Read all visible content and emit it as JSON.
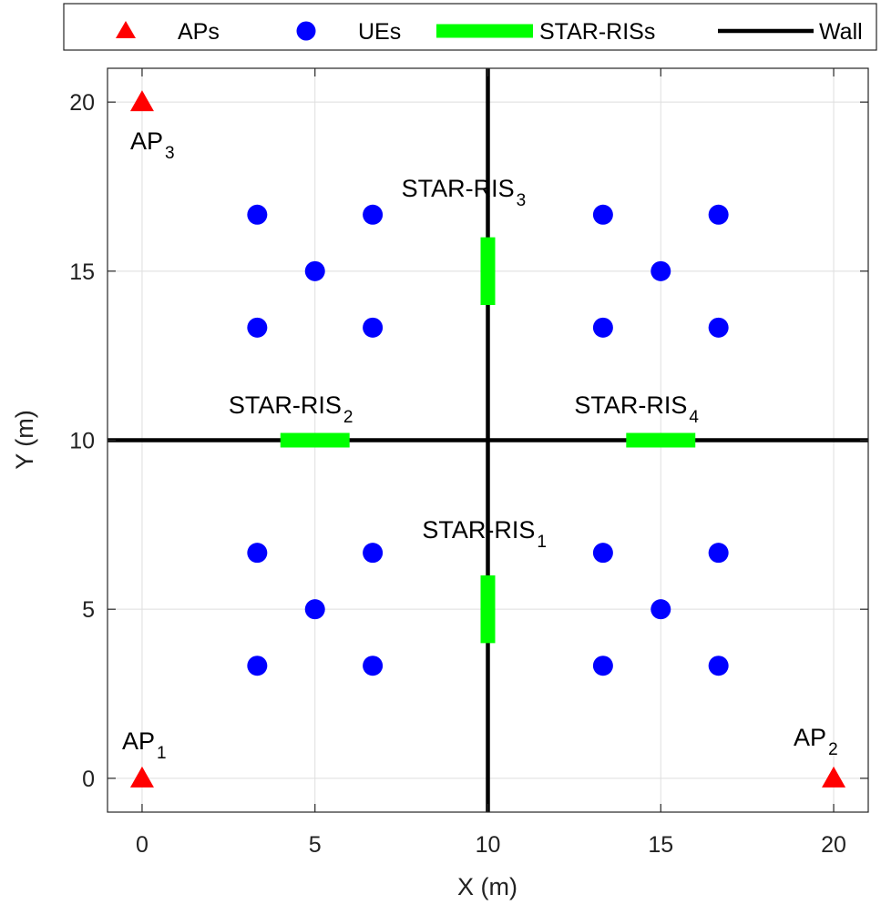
{
  "chart_data": {
    "type": "scatter",
    "xlabel": "X (m)",
    "ylabel": "Y (m)",
    "xlim": [
      -1,
      21
    ],
    "ylim": [
      -1,
      21
    ],
    "xticks": [
      0,
      5,
      10,
      15,
      20
    ],
    "yticks": [
      0,
      5,
      10,
      15,
      20
    ],
    "grid": true,
    "legend": {
      "placement": "top-outside",
      "entries": [
        {
          "label": "APs",
          "marker": "triangle",
          "color": "#ff0000"
        },
        {
          "label": "UEs",
          "marker": "circle",
          "color": "#0000ff"
        },
        {
          "label": "STAR-RISs",
          "marker": "line",
          "color": "#00ff00"
        },
        {
          "label": "Wall",
          "marker": "line",
          "color": "#000000"
        }
      ]
    },
    "aps": {
      "color": "#ff0000",
      "points": [
        {
          "x": 0,
          "y": 0,
          "label": "AP",
          "sub": "1",
          "label_pos": "above"
        },
        {
          "x": 20,
          "y": 0,
          "label": "AP",
          "sub": "2",
          "label_pos": "above-left"
        },
        {
          "x": 0,
          "y": 20,
          "label": "AP",
          "sub": "3",
          "label_pos": "below"
        }
      ]
    },
    "ues": {
      "color": "#0000ff",
      "points": [
        [
          3.33,
          3.33
        ],
        [
          6.67,
          3.33
        ],
        [
          5,
          5
        ],
        [
          3.33,
          6.67
        ],
        [
          6.67,
          6.67
        ],
        [
          13.33,
          3.33
        ],
        [
          16.67,
          3.33
        ],
        [
          15,
          5
        ],
        [
          13.33,
          6.67
        ],
        [
          16.67,
          6.67
        ],
        [
          3.33,
          13.33
        ],
        [
          6.67,
          13.33
        ],
        [
          5,
          15
        ],
        [
          3.33,
          16.67
        ],
        [
          6.67,
          16.67
        ],
        [
          13.33,
          13.33
        ],
        [
          16.67,
          13.33
        ],
        [
          15,
          15
        ],
        [
          13.33,
          16.67
        ],
        [
          16.67,
          16.67
        ]
      ]
    },
    "walls": {
      "color": "#000000",
      "segments": [
        {
          "x1": -1,
          "y1": 10,
          "x2": 21,
          "y2": 10
        },
        {
          "x1": 10,
          "y1": -1,
          "x2": 10,
          "y2": 21
        }
      ]
    },
    "star_riss": {
      "color": "#00ff00",
      "items": [
        {
          "x1": 10,
          "y1": 4,
          "x2": 10,
          "y2": 6,
          "label": "STAR-RIS",
          "sub": "1",
          "lx": 8.1,
          "ly": 7.1
        },
        {
          "x1": 4,
          "y1": 10,
          "x2": 6,
          "y2": 10,
          "label": "STAR-RIS",
          "sub": "2",
          "lx": 2.5,
          "ly": 10.8
        },
        {
          "x1": 10,
          "y1": 14,
          "x2": 10,
          "y2": 16,
          "label": "STAR-RIS",
          "sub": "3",
          "lx": 7.5,
          "ly": 17.2
        },
        {
          "x1": 14,
          "y1": 10,
          "x2": 16,
          "y2": 10,
          "label": "STAR-RIS",
          "sub": "4",
          "lx": 12.5,
          "ly": 10.8
        }
      ]
    }
  }
}
